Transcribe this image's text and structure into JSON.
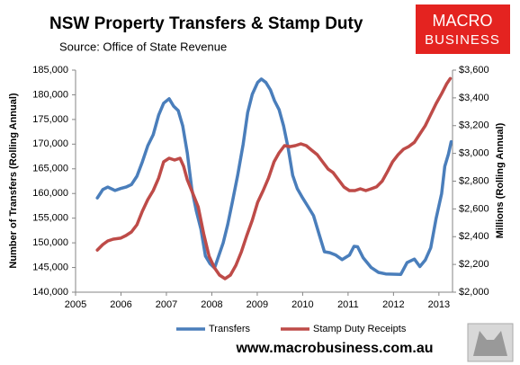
{
  "chart_data": {
    "type": "line",
    "title": "NSW Property Transfers & Stamp Duty",
    "subtitle": "Source: Office of State Revenue",
    "ylabel": "Number of Transfers (Rolling Annual)",
    "y2label": "Millions (Rolling Annual)",
    "xlim": [
      2005,
      2013.3
    ],
    "xticks": [
      2005,
      2006,
      2007,
      2008,
      2009,
      2010,
      2011,
      2012,
      2013
    ],
    "ylim": [
      140000,
      185000
    ],
    "yticks": [
      {
        "value": 140000,
        "label": "140,000"
      },
      {
        "value": 145000,
        "label": "145,000"
      },
      {
        "value": 150000,
        "label": "150,000"
      },
      {
        "value": 155000,
        "label": "155,000"
      },
      {
        "value": 160000,
        "label": "160,000"
      },
      {
        "value": 165000,
        "label": "165,000"
      },
      {
        "value": 170000,
        "label": "170,000"
      },
      {
        "value": 175000,
        "label": "175,000"
      },
      {
        "value": 180000,
        "label": "180,000"
      },
      {
        "value": 185000,
        "label": "185,000"
      }
    ],
    "y2lim": [
      2000,
      3600
    ],
    "y2ticks": [
      {
        "value": 2000,
        "label": "$2,000"
      },
      {
        "value": 2200,
        "label": "$2,200"
      },
      {
        "value": 2400,
        "label": "$2,400"
      },
      {
        "value": 2600,
        "label": "$2,600"
      },
      {
        "value": 2800,
        "label": "$2,800"
      },
      {
        "value": 3000,
        "label": "$3,000"
      },
      {
        "value": 3200,
        "label": "$3,200"
      },
      {
        "value": 3400,
        "label": "$3,400"
      },
      {
        "value": 3600,
        "label": "$3,600"
      }
    ],
    "legend": "bottom",
    "series": [
      {
        "name": "Transfers",
        "color": "#4a7ebb",
        "axis": "y",
        "x": [
          2005.48,
          2005.6,
          2005.71,
          2005.87,
          2005.99,
          2006.11,
          2006.23,
          2006.35,
          2006.47,
          2006.59,
          2006.71,
          2006.83,
          2006.94,
          2007.06,
          2007.16,
          2007.26,
          2007.36,
          2007.46,
          2007.56,
          2007.66,
          2007.76,
          2007.86,
          2007.96,
          2008.06,
          2008.15,
          2008.25,
          2008.35,
          2008.45,
          2008.57,
          2008.69,
          2008.79,
          2008.89,
          2009.01,
          2009.09,
          2009.19,
          2009.29,
          2009.38,
          2009.48,
          2009.58,
          2009.68,
          2009.78,
          2009.88,
          2010.0,
          2010.12,
          2010.24,
          2010.36,
          2010.48,
          2010.6,
          2010.73,
          2010.87,
          2011.03,
          2011.13,
          2011.21,
          2011.33,
          2011.51,
          2011.67,
          2011.83,
          2012.16,
          2012.3,
          2012.46,
          2012.58,
          2012.7,
          2012.82,
          2012.94,
          2013.06,
          2013.13,
          2013.21,
          2013.27
        ],
        "values": [
          159100,
          160800,
          161300,
          160600,
          161000,
          161300,
          161800,
          163500,
          166400,
          169700,
          171900,
          175900,
          178300,
          179200,
          177700,
          176800,
          173700,
          168200,
          160900,
          156400,
          152800,
          147300,
          145800,
          144900,
          147300,
          150000,
          153700,
          158200,
          163700,
          170000,
          176400,
          180100,
          182500,
          183200,
          182500,
          181000,
          178800,
          177000,
          173700,
          169200,
          163700,
          161000,
          159100,
          157300,
          155500,
          151800,
          148200,
          148000,
          147500,
          146600,
          147500,
          149300,
          149200,
          147000,
          145000,
          144000,
          143700,
          143600,
          146000,
          146700,
          145200,
          146500,
          149000,
          155000,
          160000,
          165500,
          168000,
          170500
        ]
      },
      {
        "name": "Stamp Duty Receipts",
        "color": "#be4b48",
        "axis": "y2",
        "x": [
          2005.48,
          2005.6,
          2005.71,
          2005.83,
          2005.99,
          2006.11,
          2006.23,
          2006.35,
          2006.47,
          2006.59,
          2006.71,
          2006.83,
          2006.94,
          2007.06,
          2007.18,
          2007.3,
          2007.38,
          2007.46,
          2007.58,
          2007.7,
          2007.82,
          2007.94,
          2008.06,
          2008.17,
          2008.29,
          2008.41,
          2008.53,
          2008.65,
          2008.77,
          2008.89,
          2009.01,
          2009.13,
          2009.25,
          2009.37,
          2009.48,
          2009.6,
          2009.72,
          2009.84,
          2009.96,
          2010.08,
          2010.2,
          2010.32,
          2010.44,
          2010.56,
          2010.67,
          2010.79,
          2010.91,
          2011.03,
          2011.15,
          2011.27,
          2011.39,
          2011.51,
          2011.63,
          2011.75,
          2011.87,
          2011.98,
          2012.1,
          2012.22,
          2012.34,
          2012.46,
          2012.58,
          2012.7,
          2012.82,
          2012.94,
          2013.06,
          2013.17,
          2013.25
        ],
        "values": [
          2304,
          2343,
          2369,
          2382,
          2389,
          2408,
          2434,
          2486,
          2583,
          2667,
          2732,
          2823,
          2939,
          2965,
          2952,
          2965,
          2907,
          2810,
          2713,
          2615,
          2421,
          2259,
          2175,
          2123,
          2097,
          2123,
          2194,
          2291,
          2408,
          2518,
          2648,
          2732,
          2823,
          2939,
          3004,
          3056,
          3049,
          3056,
          3069,
          3056,
          3023,
          2991,
          2939,
          2887,
          2862,
          2810,
          2758,
          2732,
          2732,
          2745,
          2732,
          2745,
          2760,
          2800,
          2870,
          2940,
          2990,
          3030,
          3050,
          3080,
          3140,
          3200,
          3280,
          3360,
          3430,
          3500,
          3540
        ]
      }
    ]
  },
  "branding": {
    "logo": [
      "MACRO",
      "BUSINESS"
    ],
    "url": "www.macrobusiness.com.au"
  }
}
